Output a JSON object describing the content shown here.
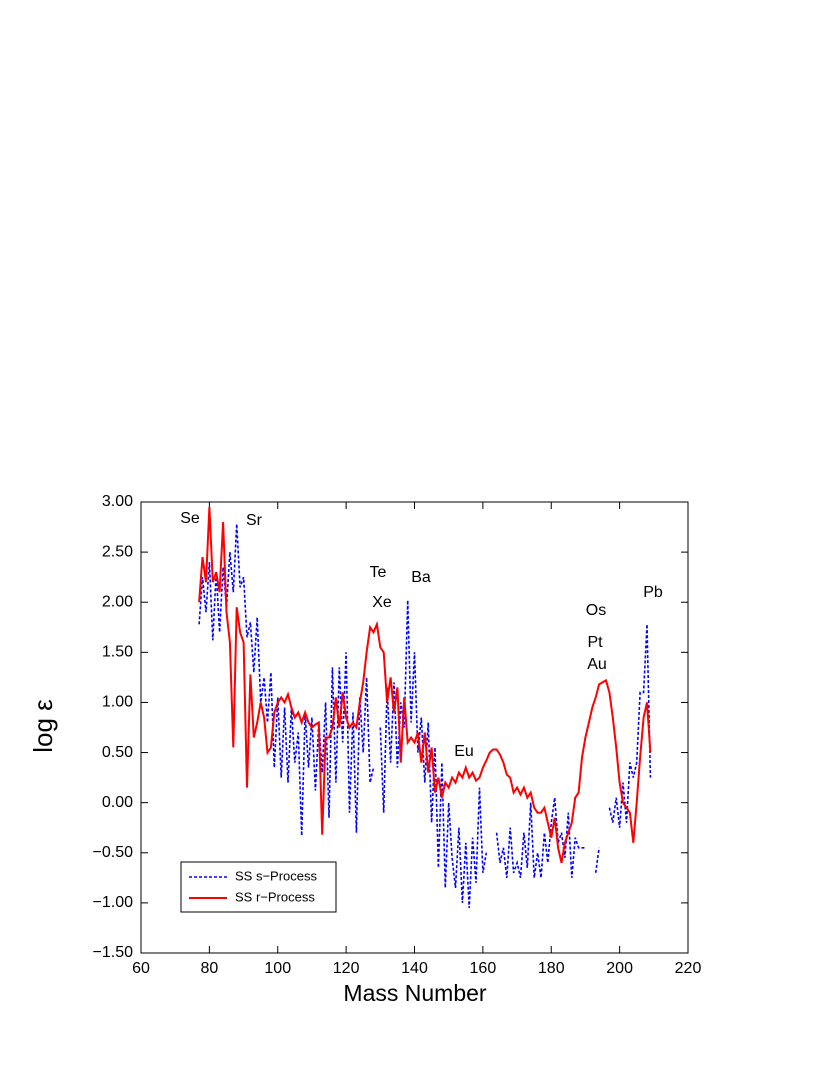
{
  "chart_data": {
    "type": "line",
    "x_label": "Mass Number",
    "y_label": "log ε",
    "x": [
      77,
      78,
      79,
      80,
      81,
      82,
      83,
      84,
      85,
      86,
      87,
      88,
      89,
      90,
      91,
      92,
      93,
      94,
      95,
      96,
      97,
      98,
      99,
      100,
      101,
      102,
      103,
      104,
      105,
      106,
      107,
      108,
      109,
      110,
      111,
      112,
      113,
      114,
      115,
      116,
      117,
      118,
      119,
      120,
      121,
      122,
      123,
      124,
      125,
      126,
      127,
      128,
      129,
      130,
      131,
      132,
      133,
      134,
      135,
      136,
      137,
      138,
      139,
      140,
      141,
      142,
      143,
      144,
      145,
      146,
      147,
      148,
      149,
      150,
      151,
      152,
      153,
      154,
      155,
      156,
      157,
      158,
      159,
      160,
      161,
      162,
      163,
      164,
      165,
      166,
      167,
      168,
      169,
      170,
      171,
      172,
      173,
      174,
      175,
      176,
      177,
      178,
      179,
      180,
      181,
      182,
      183,
      184,
      185,
      186,
      187,
      188,
      189,
      190,
      191,
      192,
      193,
      194,
      195,
      196,
      197,
      198,
      199,
      200,
      201,
      202,
      203,
      204,
      205,
      206,
      207,
      208,
      209
    ],
    "series": [
      {
        "name": "SS s−Process",
        "color": "#0000ff",
        "dash": "dotted",
        "values": [
          1.78,
          2.25,
          1.9,
          2.4,
          1.62,
          2.3,
          1.7,
          2.35,
          1.95,
          2.5,
          2.1,
          2.78,
          2.15,
          2.25,
          1.65,
          1.8,
          1.3,
          1.85,
          1.0,
          1.25,
          0.8,
          1.3,
          0.35,
          1.05,
          0.25,
          0.95,
          0.2,
          0.95,
          0.4,
          0.7,
          -0.33,
          0.9,
          0.35,
          0.85,
          0.12,
          0.8,
          0.3,
          1.0,
          -0.15,
          1.35,
          0.2,
          1.35,
          0.6,
          1.5,
          -0.1,
          0.9,
          -0.3,
          1.05,
          0.5,
          1.25,
          0.2,
          0.35,
          null,
          0.75,
          -0.1,
          1.15,
          0.4,
          1.2,
          0.35,
          1.0,
          0.75,
          2.02,
          0.8,
          1.5,
          0.5,
          0.85,
          0.2,
          0.8,
          -0.2,
          0.55,
          -0.65,
          0.4,
          -0.85,
          0.0,
          -0.55,
          -0.85,
          -0.25,
          -1.0,
          -0.4,
          -1.05,
          -0.35,
          -0.8,
          0.15,
          -0.7,
          -0.5,
          null,
          null,
          -0.3,
          -0.6,
          -0.45,
          -0.75,
          -0.25,
          -0.7,
          -0.6,
          -0.75,
          -0.3,
          -0.65,
          0.0,
          -0.75,
          -0.5,
          -0.75,
          -0.3,
          -0.6,
          -0.2,
          0.05,
          -0.4,
          -0.3,
          -0.55,
          -0.1,
          -0.75,
          -0.35,
          -0.45,
          -0.45,
          -0.45,
          null,
          null,
          -0.7,
          -0.45,
          null,
          null,
          -0.05,
          -0.2,
          0.05,
          -0.25,
          0.2,
          -0.2,
          0.4,
          0.25,
          0.4,
          1.1,
          1.1,
          1.78,
          0.25
        ]
      },
      {
        "name": "SS r−Process",
        "color": "#ff0000",
        "dash": "solid",
        "values": [
          2.0,
          2.45,
          2.2,
          2.95,
          2.2,
          2.3,
          2.1,
          2.8,
          1.9,
          1.6,
          0.55,
          1.95,
          1.7,
          1.6,
          0.15,
          1.28,
          0.65,
          0.8,
          1.0,
          0.85,
          0.5,
          0.55,
          0.9,
          1.0,
          1.05,
          1.0,
          1.08,
          0.95,
          0.85,
          0.9,
          0.8,
          0.9,
          0.8,
          0.75,
          0.78,
          0.8,
          -0.32,
          0.65,
          0.65,
          0.75,
          1.05,
          0.75,
          1.1,
          0.85,
          0.75,
          0.8,
          0.75,
          1.0,
          1.2,
          1.5,
          1.75,
          1.7,
          1.78,
          1.55,
          1.5,
          1.0,
          1.25,
          0.9,
          1.15,
          0.4,
          1.05,
          0.6,
          0.65,
          0.6,
          0.7,
          0.4,
          0.7,
          0.3,
          0.55,
          0.1,
          0.25,
          0.05,
          0.2,
          0.15,
          0.25,
          0.2,
          0.3,
          0.25,
          0.35,
          0.25,
          0.3,
          0.22,
          0.25,
          0.35,
          0.42,
          0.5,
          0.53,
          0.53,
          0.48,
          0.4,
          0.28,
          0.25,
          0.1,
          0.15,
          0.08,
          0.15,
          0.05,
          0.1,
          -0.05,
          -0.1,
          -0.1,
          -0.05,
          -0.2,
          -0.35,
          -0.15,
          -0.45,
          -0.6,
          -0.4,
          -0.3,
          -0.2,
          0.05,
          0.1,
          0.45,
          0.65,
          0.8,
          0.95,
          1.05,
          1.18,
          1.2,
          1.22,
          1.1,
          0.85,
          0.55,
          0.2,
          0.0,
          -0.05,
          -0.1,
          -0.4,
          0.0,
          0.45,
          0.85,
          1.0,
          0.5
        ]
      }
    ],
    "xlim": [
      60,
      220
    ],
    "xticks": [
      60,
      80,
      100,
      120,
      140,
      160,
      180,
      200,
      220
    ],
    "ylim": [
      -1.5,
      3.0
    ],
    "yticks": [
      {
        "value": -1.5,
        "label": "−1.50"
      },
      {
        "value": -1.0,
        "label": "−1.00"
      },
      {
        "value": -0.5,
        "label": "−0.50"
      },
      {
        "value": 0,
        "label": "0.00"
      },
      {
        "value": 0.5,
        "label": "0.50"
      },
      {
        "value": 1.0,
        "label": "1.00"
      },
      {
        "value": 1.5,
        "label": "1.50"
      },
      {
        "value": 2.0,
        "label": "2.00"
      },
      {
        "value": 2.5,
        "label": "2.50"
      },
      {
        "value": 3.0,
        "label": "3.00"
      }
    ],
    "annotations": [
      "Se",
      "Sr",
      "Te",
      "Xe",
      "Ba",
      "Eu",
      "Os",
      "Pt",
      "Au",
      "Pb"
    ],
    "legend": "lower left",
    "grid": false
  }
}
